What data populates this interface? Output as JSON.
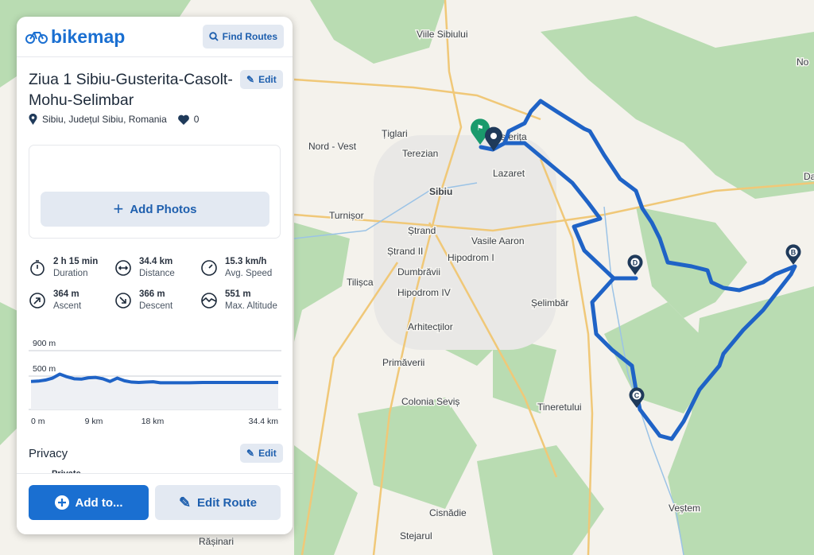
{
  "app": {
    "logo": "bikemap",
    "find_routes": "Find Routes"
  },
  "route": {
    "title": "Ziua 1 Sibiu-Gusterita-Casolt-Mohu-Selimbar",
    "edit_label": "Edit",
    "location": "Sibiu, Județul Sibiu, Romania",
    "likes": "0",
    "add_photos": "Add Photos"
  },
  "stats": [
    {
      "value": "2 h 15 min",
      "label": "Duration",
      "icon": "stopwatch-icon"
    },
    {
      "value": "34.4 km",
      "label": "Distance",
      "icon": "distance-arrows-icon"
    },
    {
      "value": "15.3 km/h",
      "label": "Avg. Speed",
      "icon": "speedometer-icon"
    },
    {
      "value": "364 m",
      "label": "Ascent",
      "icon": "ascent-arrow-icon"
    },
    {
      "value": "366 m",
      "label": "Descent",
      "icon": "descent-arrow-icon"
    },
    {
      "value": "551 m",
      "label": "Max. Altitude",
      "icon": "altitude-icon"
    }
  ],
  "chart_data": {
    "type": "area",
    "y_ticks": [
      "900 m",
      "500 m",
      "0 m"
    ],
    "x_ticks": [
      "0 m",
      "9 km",
      "18 km",
      "34.4 km"
    ],
    "ylim": [
      0,
      900
    ],
    "xlim": [
      0,
      34.4
    ],
    "x": [
      0,
      1,
      2,
      3,
      4,
      5,
      6,
      7,
      8,
      9,
      10,
      11,
      12,
      13,
      14,
      15,
      16,
      17,
      18,
      20,
      22,
      24,
      26,
      28,
      30,
      32,
      34.4
    ],
    "y": [
      420,
      425,
      440,
      470,
      530,
      490,
      460,
      455,
      475,
      480,
      460,
      420,
      470,
      430,
      410,
      405,
      410,
      415,
      400,
      400,
      400,
      405,
      405,
      405,
      405,
      405,
      405
    ]
  },
  "privacy": {
    "title": "Privacy",
    "edit_label": "Edit",
    "value": "Private"
  },
  "footer": {
    "add_to": "Add to...",
    "edit_route": "Edit Route"
  },
  "map": {
    "labels": [
      "Viile Sibiului",
      "Țiglari",
      "Nord - Vest",
      "Terezian",
      "Gușterița",
      "Lazaret",
      "Sibiu",
      "Turnișor",
      "Ștrand",
      "Ștrand II",
      "Vasile Aaron",
      "Hipodrom I",
      "Tilișca",
      "Dumbrăvii",
      "Hipodrom IV",
      "Șelimbăr",
      "Arhitecților",
      "Primăverii",
      "Colonia Seviș",
      "Tineretului",
      "Cisnădie",
      "Stejarul",
      "Veștem",
      "Rășinari",
      "No",
      "Da"
    ],
    "markers": [
      "B",
      "C",
      "D"
    ],
    "route_color": "#1f63c6",
    "start_color": "#1a9a6c"
  }
}
